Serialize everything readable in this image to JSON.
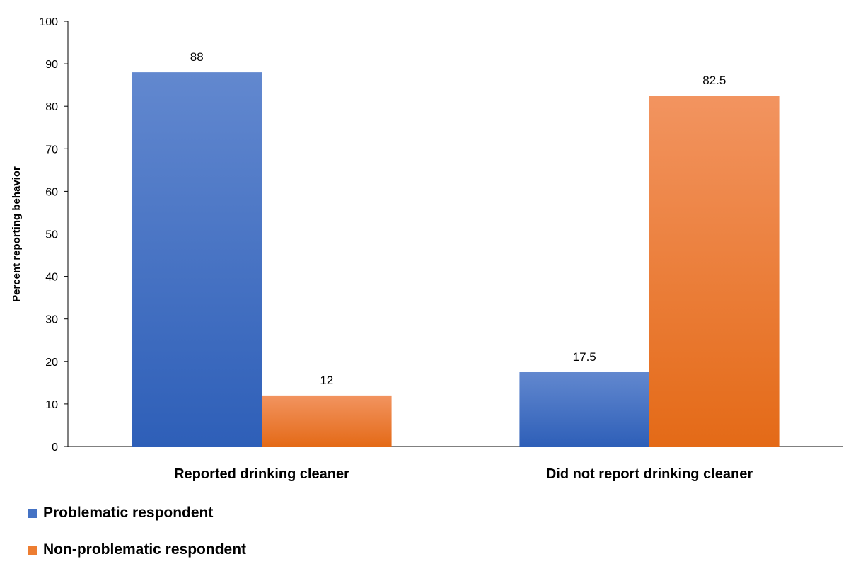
{
  "chart_data": {
    "type": "bar",
    "categories": [
      "Reported drinking cleaner",
      "Did not report drinking cleaner"
    ],
    "series": [
      {
        "name": "Problematic respondent",
        "values": [
          88,
          17.5
        ],
        "color": "#4472C4"
      },
      {
        "name": "Non-problematic respondent",
        "values": [
          12,
          82.5
        ],
        "color": "#ED7D31"
      }
    ],
    "ylabel": "Percent reporting behavior",
    "xlabel": "",
    "ylim": [
      0,
      100
    ],
    "yticks": [
      0,
      10,
      20,
      30,
      40,
      50,
      60,
      70,
      80,
      90,
      100
    ],
    "grid": false,
    "legend_position": "bottom-left"
  }
}
